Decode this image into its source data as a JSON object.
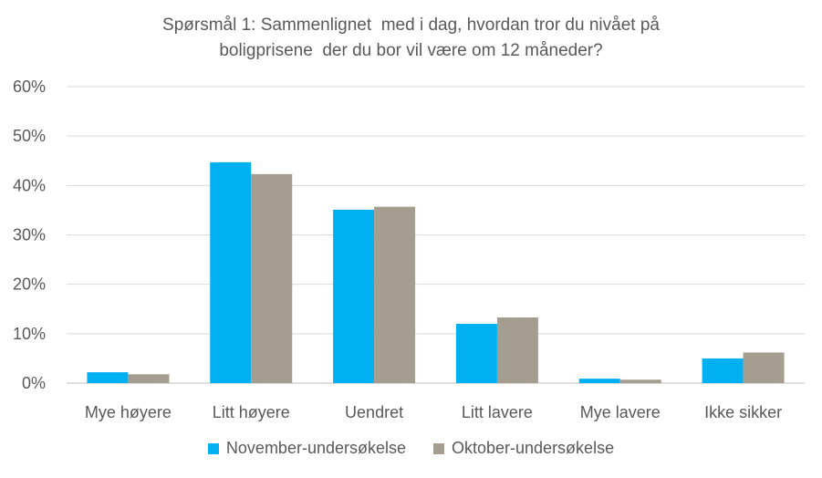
{
  "chart_data": {
    "type": "bar",
    "title_lines": [
      "Spørsmål 1: Sammenlignet  med i dag, hvordan tror du nivået på",
      "boligprisene  der du bor vil være om 12 måneder?"
    ],
    "categories": [
      "Mye høyere",
      "Litt høyere",
      "Uendret",
      "Litt lavere",
      "Mye lavere",
      "Ikke sikker"
    ],
    "series": [
      {
        "name": "November-undersøkelse",
        "color": "#00b0f0",
        "values": [
          2.2,
          44.7,
          35.1,
          12.0,
          0.9,
          5.0
        ]
      },
      {
        "name": "Oktober-undersøkelse",
        "color": "#a59d8f",
        "values": [
          1.8,
          42.3,
          35.7,
          13.3,
          0.7,
          6.2
        ]
      }
    ],
    "ylim": [
      0,
      60
    ],
    "yticks": [
      0,
      10,
      20,
      30,
      40,
      50,
      60
    ],
    "ytick_labels": [
      "0%",
      "10%",
      "20%",
      "30%",
      "40%",
      "50%",
      "60%"
    ],
    "grid": true,
    "legend_position": "bottom"
  }
}
